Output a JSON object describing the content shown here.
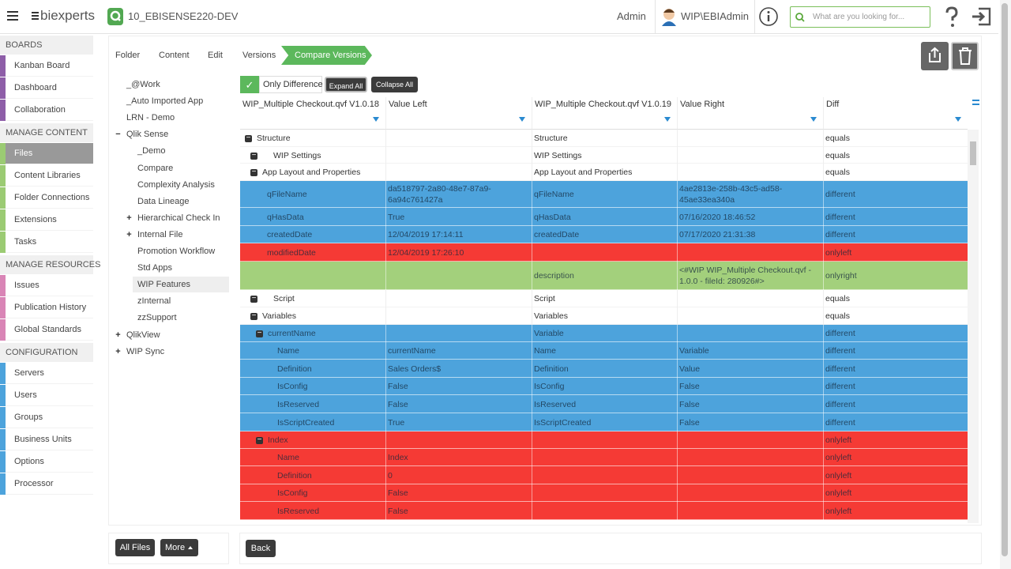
{
  "header": {
    "logo": "biexperts",
    "app_name": "10_EBISENSE220-DEV",
    "user": "Admin",
    "account": "WIP\\EBIAdmin",
    "search_placeholder": "What are you looking for..."
  },
  "sidebar": {
    "sections": [
      {
        "title": "BOARDS",
        "color": "#8e5ea8",
        "items": [
          "Kanban Board",
          "Dashboard",
          "Collaboration"
        ]
      },
      {
        "title": "MANAGE CONTENT",
        "color": "#9bcb73",
        "items": [
          "Files",
          "Content Libraries",
          "Folder Connections",
          "Extensions",
          "Tasks"
        ]
      },
      {
        "title": "MANAGE RESOURCES",
        "color": "#d985b6",
        "items": [
          "Issues",
          "Publication History",
          "Global Standards"
        ]
      },
      {
        "title": "CONFIGURATION",
        "color": "#4da3dc",
        "items": [
          "Servers",
          "Users",
          "Groups",
          "Business Units",
          "Options",
          "Processor"
        ]
      }
    ]
  },
  "breadcrumb": [
    "Folder",
    "Content",
    "Edit",
    "Versions",
    "Compare Versions"
  ],
  "tree": [
    "_@Work",
    "_Auto Imported App",
    "LRN - Demo",
    "Qlik Sense",
    "_Demo",
    "Compare",
    "Complexity Analysis",
    "Data Lineage",
    "Hierarchical Check In",
    "Internal File",
    "Promotion Workflow",
    "Std Apps",
    "WIP Features",
    "zInternal",
    "zzSupport",
    "QlikView",
    "WIP Sync"
  ],
  "toolbar": {
    "only_difference": "Only Difference",
    "expand_all": "Expand All",
    "collapse_all": "Collapse All"
  },
  "table": {
    "columns": [
      "WIP_Multiple Checkout.qvf V1.0.18",
      "Value Left",
      "WIP_Multiple Checkout.qvf V1.0.19",
      "Value Right",
      "Diff"
    ],
    "status_colors": {
      "equals": "#ffffff",
      "different": "#4da3dc",
      "onlyleft": "#f53a35",
      "onlyright": "#a3d07c"
    },
    "rows": [
      [
        "Structure",
        null,
        "Structure",
        null,
        "equals"
      ],
      [
        "WIP Settings",
        null,
        "WIP Settings",
        null,
        "equals"
      ],
      [
        "App Layout and Properties",
        null,
        "App Layout and Properties",
        null,
        "equals"
      ],
      [
        "qFileName",
        "da518797-2a80-48e7-87a9-6a94c761427a",
        "qFileName",
        "4ae2813e-258b-43c5-ad58-45ae33ea340a",
        "different"
      ],
      [
        "qHasData",
        "True",
        "qHasData",
        "07/16/2020 18:46:52",
        "different"
      ],
      [
        "createdDate",
        "12/04/2019 17:14:11",
        "createdDate",
        "07/17/2020 21:31:38",
        "different"
      ],
      [
        "modifiedDate",
        "12/04/2019 17:26:10",
        null,
        null,
        "onlyleft"
      ],
      [
        null,
        null,
        "description",
        "<#WIP WIP_Multiple Checkout.qvf - 1.0.0 - fileId: 280926#>",
        "onlyright"
      ],
      [
        "Script",
        null,
        "Script",
        null,
        "equals"
      ],
      [
        "Variables",
        null,
        "Variables",
        null,
        "equals"
      ],
      [
        "currentName",
        null,
        "Variable",
        null,
        "different"
      ],
      [
        "Name",
        "currentName",
        "Name",
        "Variable",
        "different"
      ],
      [
        "Definition",
        "Sales Orders$",
        "Definition",
        "Value",
        "different"
      ],
      [
        "IsConfig",
        "False",
        "IsConfig",
        "False",
        "different"
      ],
      [
        "IsReserved",
        "False",
        "IsReserved",
        "False",
        "different"
      ],
      [
        "IsScriptCreated",
        "True",
        "IsScriptCreated",
        "False",
        "different"
      ],
      [
        "Index",
        null,
        null,
        null,
        "onlyleft"
      ],
      [
        "Name",
        "Index",
        null,
        null,
        "onlyleft"
      ],
      [
        "Definition",
        "0",
        null,
        null,
        "onlyleft"
      ],
      [
        "IsConfig",
        "False",
        null,
        null,
        "onlyleft"
      ],
      [
        "IsReserved",
        "False",
        null,
        null,
        "onlyleft"
      ]
    ]
  },
  "footer": {
    "all_files": "All Files",
    "more": "More",
    "back": "Back"
  }
}
